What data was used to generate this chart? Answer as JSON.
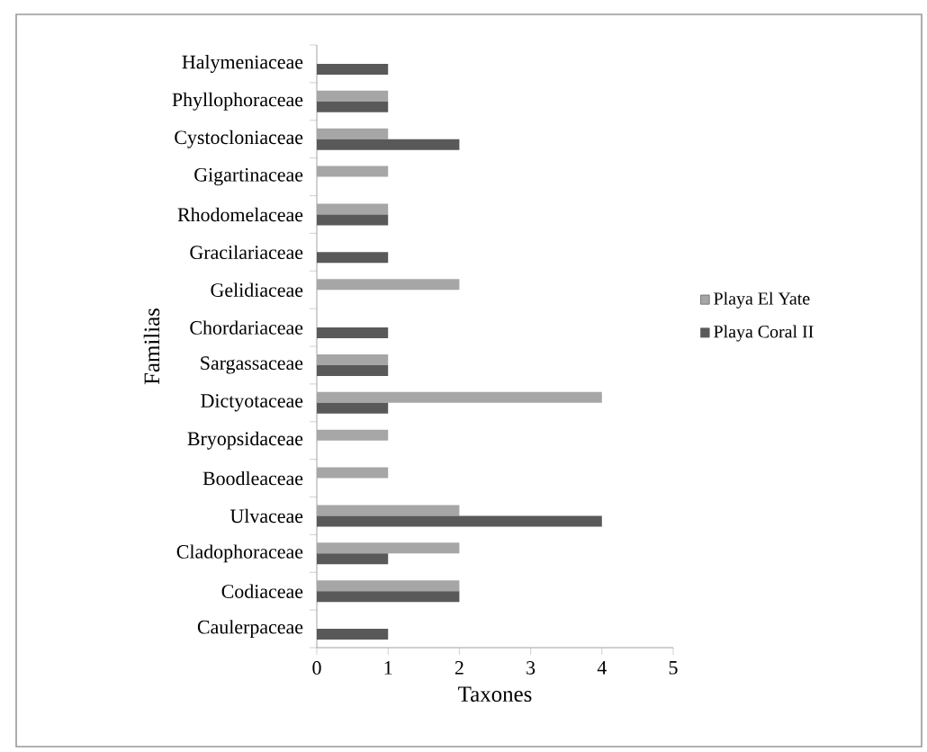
{
  "chart_data": {
    "type": "bar",
    "orientation": "horizontal",
    "xlabel": "Taxones",
    "ylabel": "Familias",
    "categories": [
      "Halymeniaceae",
      "Phyllophoraceae",
      "Cystocloniaceae",
      "Gigartinaceae",
      "Rhodomelaceae",
      "Gracilariaceae",
      "Gelidiaceae",
      "Chordariaceae",
      "Sargassaceae",
      "Dictyotaceae",
      "Bryopsidaceae",
      "Boodleaceae",
      "Ulvaceae",
      "Cladophoraceae",
      "Codiaceae",
      "Caulerpaceae"
    ],
    "series": [
      {
        "name": "Playa El Yate",
        "color": "#a6a6a6",
        "values": [
          0,
          1,
          1,
          1,
          1,
          0,
          2,
          0,
          1,
          4,
          1,
          1,
          2,
          2,
          2,
          0
        ]
      },
      {
        "name": "Playa Coral II",
        "color": "#595959",
        "values": [
          1,
          1,
          2,
          0,
          1,
          1,
          0,
          1,
          1,
          1,
          0,
          0,
          4,
          1,
          2,
          1
        ]
      }
    ],
    "xlim": [
      0,
      5
    ],
    "xticks": [
      0,
      1,
      2,
      3,
      4,
      5
    ],
    "grid": false,
    "legend": "right"
  }
}
